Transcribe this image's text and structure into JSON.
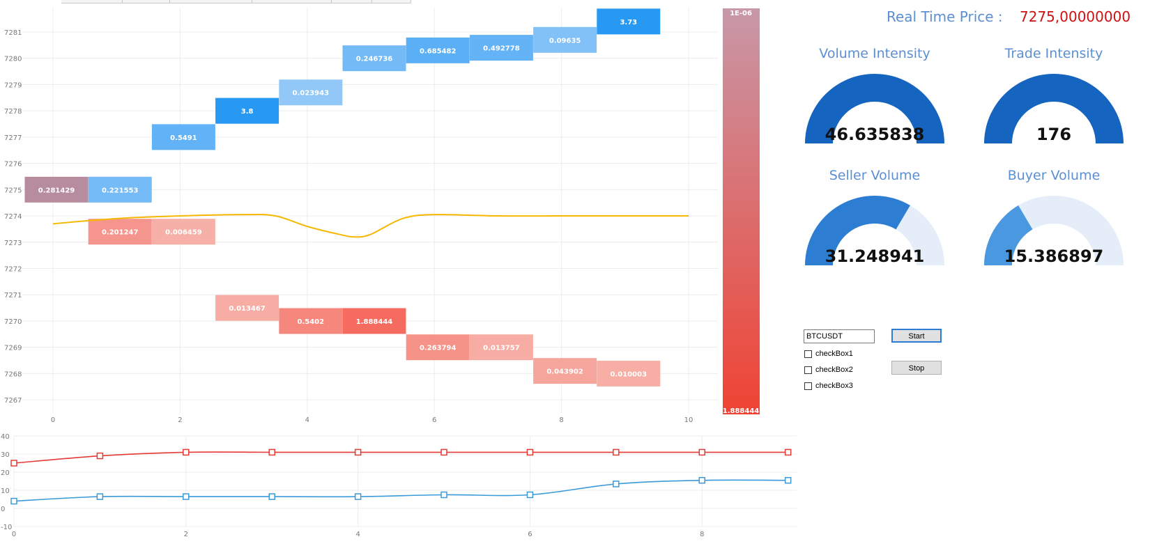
{
  "header": {
    "price_label": "Real Time Price :",
    "price_value": "7275,00000000"
  },
  "gauges": [
    {
      "id": "volume-intensity",
      "title": "Volume Intensity",
      "value_text": "46.635838",
      "fraction": 1.0,
      "color": "#1565c0"
    },
    {
      "id": "trade-intensity",
      "title": "Trade Intensity",
      "value_text": "176",
      "fraction": 1.0,
      "color": "#1565c0"
    },
    {
      "id": "seller-volume",
      "title": "Seller  Volume",
      "value_text": "31.248941",
      "fraction": 0.67,
      "color": "#2d7dd2"
    },
    {
      "id": "buyer-volume",
      "title": "Buyer  Volume",
      "value_text": "15.386897",
      "fraction": 0.33,
      "color": "#4a98e0"
    }
  ],
  "controls": {
    "symbol_value": "BTCUSDT",
    "start_label": "Start",
    "stop_label": "Stop",
    "checkboxes": [
      {
        "label": "checkBox1",
        "checked": false
      },
      {
        "label": "checkBox2",
        "checked": false
      },
      {
        "label": "checkBox3",
        "checked": false
      }
    ]
  },
  "chart_data": [
    {
      "type": "heatmap",
      "x_ticks": [
        0,
        2,
        4,
        6,
        8,
        10
      ],
      "y_ticks": [
        7267,
        7268,
        7269,
        7270,
        7271,
        7272,
        7273,
        7274,
        7275,
        7276,
        7277,
        7278,
        7279,
        7280,
        7281
      ],
      "xlim": [
        -1,
        10.5
      ],
      "ylim": [
        7266.5,
        7281.9
      ],
      "grid": true,
      "bid_color": "#2196f3",
      "ask_color": "#f44336",
      "cells": [
        {
          "x": 0,
          "y": 7275,
          "label": "0.281429",
          "value": 0.281429,
          "side": "mixed"
        },
        {
          "x": 1,
          "y": 7275,
          "label": "0.221553",
          "value": 0.221553,
          "side": "bid"
        },
        {
          "x": 2,
          "y": 7277,
          "label": "0.5491",
          "value": 0.5491,
          "side": "bid"
        },
        {
          "x": 3,
          "y": 7278,
          "label": "3.8",
          "value": 3.8,
          "side": "bid"
        },
        {
          "x": 4,
          "y": 7278.7,
          "label": "0.023943",
          "value": 0.023943,
          "side": "bid"
        },
        {
          "x": 5,
          "y": 7280,
          "label": "0.246736",
          "value": 0.246736,
          "side": "bid"
        },
        {
          "x": 6,
          "y": 7280.3,
          "label": "0.685482",
          "value": 0.685482,
          "side": "bid"
        },
        {
          "x": 7,
          "y": 7280.4,
          "label": "0.492778",
          "value": 0.492778,
          "side": "bid"
        },
        {
          "x": 8,
          "y": 7280.7,
          "label": "0.09635",
          "value": 0.09635,
          "side": "bid"
        },
        {
          "x": 9,
          "y": 7281.4,
          "label": "3.73",
          "value": 3.73,
          "side": "bid"
        },
        {
          "x": 1,
          "y": 7273.4,
          "label": "0.201247",
          "value": 0.201247,
          "side": "ask"
        },
        {
          "x": 2,
          "y": 7273.4,
          "label": "0.006459",
          "value": 0.006459,
          "side": "ask"
        },
        {
          "x": 3,
          "y": 7270.5,
          "label": "0.013467",
          "value": 0.013467,
          "side": "ask"
        },
        {
          "x": 4,
          "y": 7270,
          "label": "0.5402",
          "value": 0.5402,
          "side": "ask"
        },
        {
          "x": 5,
          "y": 7270,
          "label": "1.888444",
          "value": 1.888444,
          "side": "ask"
        },
        {
          "x": 6,
          "y": 7269,
          "label": "0.263794",
          "value": 0.263794,
          "side": "ask"
        },
        {
          "x": 7,
          "y": 7269,
          "label": "0.013757",
          "value": 0.013757,
          "side": "ask"
        },
        {
          "x": 8,
          "y": 7268.1,
          "label": "0.043902",
          "value": 0.043902,
          "side": "ask"
        },
        {
          "x": 9,
          "y": 7268,
          "label": "0.010003",
          "value": 0.010003,
          "side": "ask"
        }
      ],
      "price_line": {
        "color": "#f5b800",
        "x": [
          0,
          1,
          2,
          3,
          3.5,
          4,
          4.5,
          4.75,
          5,
          5.5,
          6,
          7,
          8,
          9,
          10
        ],
        "y": [
          7273.7,
          7273.9,
          7274.0,
          7274.05,
          7274.0,
          7273.6,
          7273.3,
          7273.2,
          7273.3,
          7273.9,
          7274.05,
          7274.0,
          7274.0,
          7274.0,
          7274.0
        ]
      },
      "color_scale": {
        "top_label": "1E-06",
        "bottom_label": "1.888444",
        "top_color": "#c898a8",
        "bottom_color": "#ef4333"
      }
    },
    {
      "type": "line",
      "x_ticks": [
        0,
        2,
        4,
        6,
        8
      ],
      "y_ticks": [
        -10,
        0,
        10,
        20,
        30,
        40
      ],
      "xlim": [
        0,
        9.1
      ],
      "ylim": [
        -10,
        40
      ],
      "grid": true,
      "series": [
        {
          "color": "#e53935",
          "x": [
            0,
            1,
            2,
            3,
            4,
            5,
            6,
            7,
            8,
            9
          ],
          "values": [
            25,
            29,
            31,
            31,
            31,
            31,
            31,
            31,
            31,
            31
          ]
        },
        {
          "color": "#3a9ad9",
          "x": [
            0,
            1,
            2,
            3,
            4,
            5,
            6,
            7,
            8,
            9
          ],
          "values": [
            4,
            6.5,
            6.5,
            6.5,
            6.5,
            7.5,
            7.5,
            13.5,
            15.5,
            15.5
          ]
        }
      ]
    }
  ]
}
